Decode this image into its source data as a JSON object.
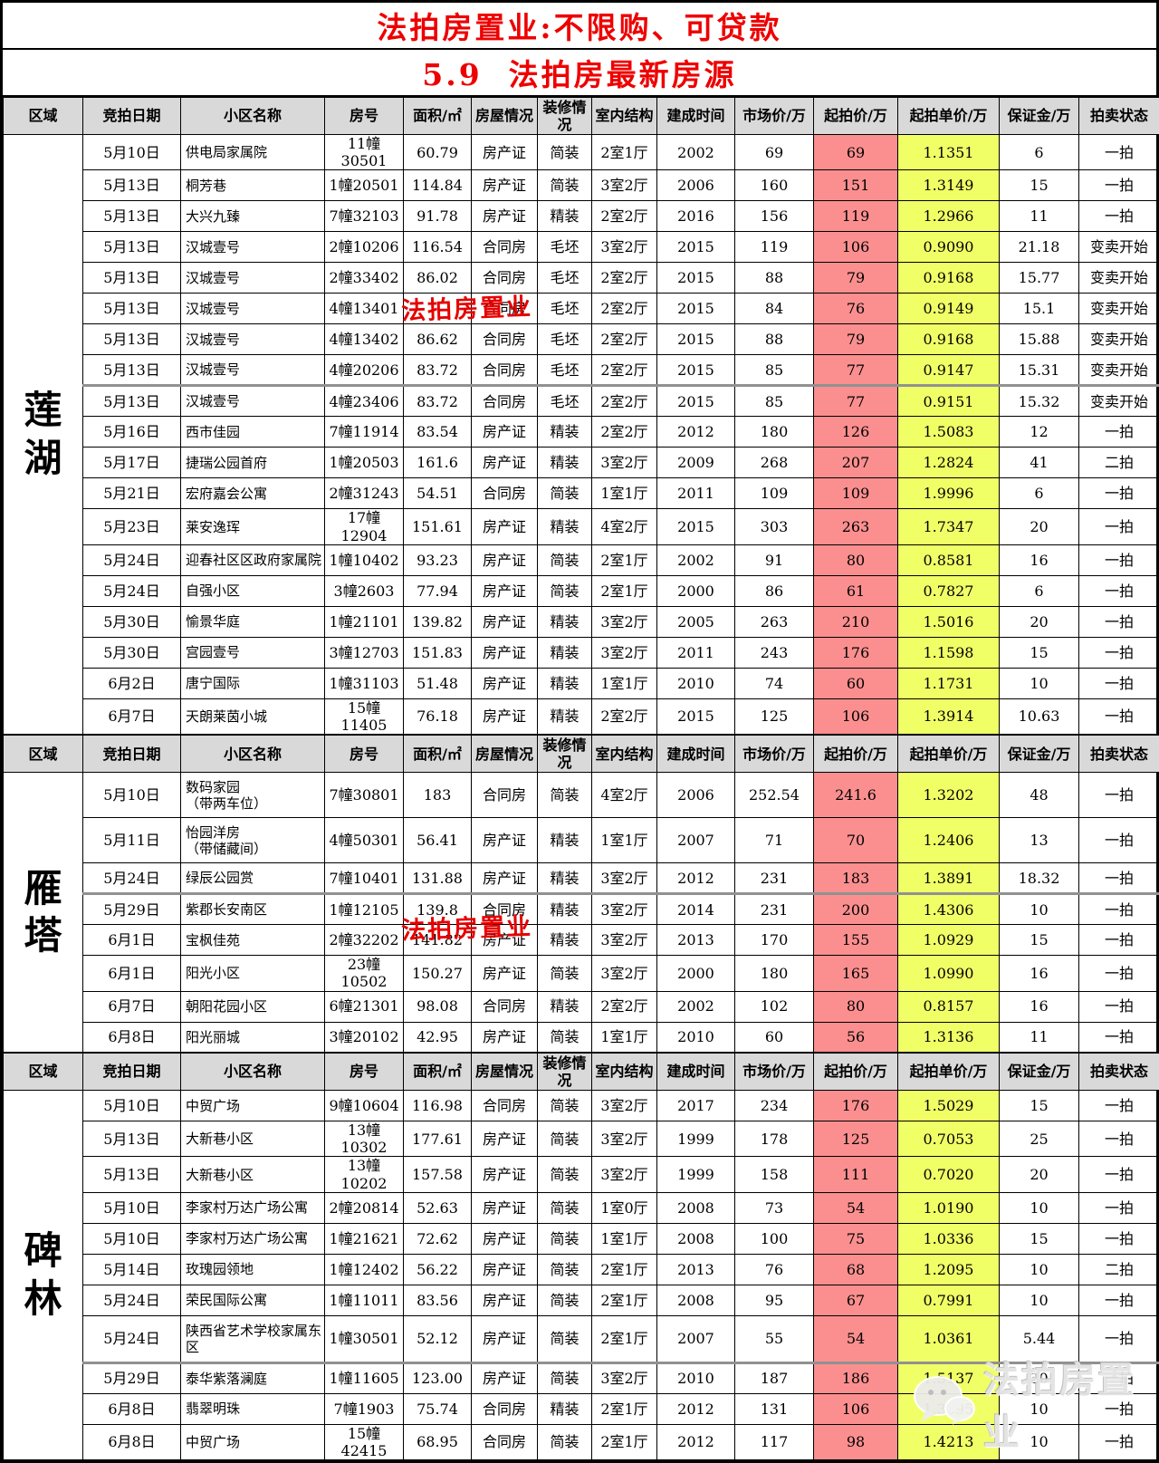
{
  "title1": "法拍房置业:不限购、可贷款",
  "title2": "5.9  法拍房最新房源",
  "columns": [
    "区域",
    "竞拍日期",
    "小区名称",
    "房号",
    "面积/㎡",
    "房屋情况",
    "装修情况",
    "室内结构",
    "建成时间",
    "市场价/万",
    "起拍价/万",
    "起拍单价/万",
    "保证金/万",
    "拍卖状态"
  ],
  "colors": {
    "header_bg": "#d9d9d9",
    "start_price_bg": "#fb8f8f",
    "unit_price_bg": "#f1ff67",
    "title_red": "#ee0000",
    "watermark_red": "#e60000"
  },
  "watermarks": {
    "red_text_1": "法拍房置业",
    "red_text_2": "法拍房置业",
    "wechat_text": "法拍房置业"
  },
  "sections": [
    {
      "region": "莲湖",
      "rows": [
        {
          "date": "5月10日",
          "name": "供电局家属院",
          "room": "11幢30501",
          "area": "60.79",
          "cert": "房产证",
          "deco": "简装",
          "layout": "2室1厅",
          "year": "2002",
          "market": "69",
          "start": "69",
          "unit": "1.1351",
          "deposit": "6",
          "status": "一拍"
        },
        {
          "date": "5月13日",
          "name": "桐芳巷",
          "room": "1幢20501",
          "area": "114.84",
          "cert": "房产证",
          "deco": "简装",
          "layout": "3室2厅",
          "year": "2006",
          "market": "160",
          "start": "151",
          "unit": "1.3149",
          "deposit": "15",
          "status": "一拍"
        },
        {
          "date": "5月13日",
          "name": "大兴九臻",
          "room": "7幢32103",
          "area": "91.78",
          "cert": "房产证",
          "deco": "精装",
          "layout": "2室2厅",
          "year": "2016",
          "market": "156",
          "start": "119",
          "unit": "1.2966",
          "deposit": "11",
          "status": "一拍"
        },
        {
          "date": "5月13日",
          "name": "汉城壹号",
          "room": "2幢10206",
          "area": "116.54",
          "cert": "合同房",
          "deco": "毛坯",
          "layout": "3室2厅",
          "year": "2015",
          "market": "119",
          "start": "106",
          "unit": "0.9090",
          "deposit": "21.18",
          "status": "变卖开始"
        },
        {
          "date": "5月13日",
          "name": "汉城壹号",
          "room": "2幢33402",
          "area": "86.02",
          "cert": "合同房",
          "deco": "毛坯",
          "layout": "2室2厅",
          "year": "2015",
          "market": "88",
          "start": "79",
          "unit": "0.9168",
          "deposit": "15.77",
          "status": "变卖开始"
        },
        {
          "date": "5月13日",
          "name": "汉城壹号",
          "room": "4幢13401",
          "area": "",
          "cert": "合同房",
          "deco": "毛坯",
          "layout": "2室2厅",
          "year": "2015",
          "market": "84",
          "start": "76",
          "unit": "0.9149",
          "deposit": "15.1",
          "status": "变卖开始"
        },
        {
          "date": "5月13日",
          "name": "汉城壹号",
          "room": "4幢13402",
          "area": "86.62",
          "cert": "合同房",
          "deco": "毛坯",
          "layout": "2室2厅",
          "year": "2015",
          "market": "88",
          "start": "79",
          "unit": "0.9168",
          "deposit": "15.88",
          "status": "变卖开始"
        },
        {
          "date": "5月13日",
          "name": "汉城壹号",
          "room": "4幢20206",
          "area": "83.72",
          "cert": "合同房",
          "deco": "毛坯",
          "layout": "2室2厅",
          "year": "2015",
          "market": "85",
          "start": "77",
          "unit": "0.9147",
          "deposit": "15.31",
          "status": "变卖开始"
        },
        {
          "date": "5月13日",
          "name": "汉城壹号",
          "room": "4幢23406",
          "area": "83.72",
          "cert": "合同房",
          "deco": "毛坯",
          "layout": "2室2厅",
          "year": "2015",
          "market": "85",
          "start": "77",
          "unit": "0.9151",
          "deposit": "15.32",
          "status": "变卖开始",
          "gray_top": true
        },
        {
          "date": "5月16日",
          "name": "西市佳园",
          "room": "7幢11914",
          "area": "83.54",
          "cert": "房产证",
          "deco": "精装",
          "layout": "2室2厅",
          "year": "2012",
          "market": "180",
          "start": "126",
          "unit": "1.5083",
          "deposit": "12",
          "status": "一拍"
        },
        {
          "date": "5月17日",
          "name": "捷瑞公园首府",
          "room": "1幢20503",
          "area": "161.6",
          "cert": "房产证",
          "deco": "精装",
          "layout": "3室2厅",
          "year": "2009",
          "market": "268",
          "start": "207",
          "unit": "1.2824",
          "deposit": "41",
          "status": "二拍"
        },
        {
          "date": "5月21日",
          "name": "宏府嘉会公寓",
          "room": "2幢31243",
          "area": "54.51",
          "cert": "合同房",
          "deco": "简装",
          "layout": "1室1厅",
          "year": "2011",
          "market": "109",
          "start": "109",
          "unit": "1.9996",
          "deposit": "6",
          "status": "一拍"
        },
        {
          "date": "5月23日",
          "name": "莱安逸珲",
          "room": "17幢12904",
          "area": "151.61",
          "cert": "房产证",
          "deco": "精装",
          "layout": "4室2厅",
          "year": "2015",
          "market": "303",
          "start": "263",
          "unit": "1.7347",
          "deposit": "20",
          "status": "一拍"
        },
        {
          "date": "5月24日",
          "name": "迎春社区区政府家属院",
          "room": "1幢10402",
          "area": "93.23",
          "cert": "房产证",
          "deco": "简装",
          "layout": "2室1厅",
          "year": "2002",
          "market": "91",
          "start": "80",
          "unit": "0.8581",
          "deposit": "16",
          "status": "一拍"
        },
        {
          "date": "5月24日",
          "name": "自强小区",
          "room": "3幢2603",
          "area": "77.94",
          "cert": "房产证",
          "deco": "简装",
          "layout": "2室1厅",
          "year": "2000",
          "market": "86",
          "start": "61",
          "unit": "0.7827",
          "deposit": "6",
          "status": "一拍"
        },
        {
          "date": "5月30日",
          "name": "愉景华庭",
          "room": "1幢21101",
          "area": "139.82",
          "cert": "房产证",
          "deco": "精装",
          "layout": "3室2厅",
          "year": "2005",
          "market": "263",
          "start": "210",
          "unit": "1.5016",
          "deposit": "20",
          "status": "一拍"
        },
        {
          "date": "5月30日",
          "name": "宫园壹号",
          "room": "3幢12703",
          "area": "151.83",
          "cert": "房产证",
          "deco": "精装",
          "layout": "3室2厅",
          "year": "2011",
          "market": "243",
          "start": "176",
          "unit": "1.1598",
          "deposit": "15",
          "status": "一拍"
        },
        {
          "date": "6月2日",
          "name": "唐宁国际",
          "room": "1幢31103",
          "area": "51.48",
          "cert": "房产证",
          "deco": "精装",
          "layout": "1室1厅",
          "year": "2010",
          "market": "74",
          "start": "60",
          "unit": "1.1731",
          "deposit": "10",
          "status": "一拍"
        },
        {
          "date": "6月7日",
          "name": "天朗莱茵小城",
          "room": "15幢11405",
          "area": "76.18",
          "cert": "房产证",
          "deco": "精装",
          "layout": "2室2厅",
          "year": "2015",
          "market": "125",
          "start": "106",
          "unit": "1.3914",
          "deposit": "10.63",
          "status": "一拍"
        }
      ]
    },
    {
      "region": "雁塔",
      "rows": [
        {
          "date": "5月10日",
          "name": "数码家园",
          "name2": "（带两车位）",
          "room": "7幢30801",
          "area": "183",
          "cert": "合同房",
          "deco": "简装",
          "layout": "4室2厅",
          "year": "2006",
          "market": "252.54",
          "start": "241.6",
          "unit": "1.3202",
          "deposit": "48",
          "status": "一拍",
          "tall": 50
        },
        {
          "date": "5月11日",
          "name": "怡园洋房",
          "name2": "（带储藏间）",
          "room": "4幢50301",
          "area": "56.41",
          "cert": "房产证",
          "deco": "精装",
          "layout": "1室1厅",
          "year": "2007",
          "market": "71",
          "start": "70",
          "unit": "1.2406",
          "deposit": "13",
          "status": "一拍",
          "tall": 50
        },
        {
          "date": "5月24日",
          "name": "绿辰公园赏",
          "room": "7幢10401",
          "area": "131.88",
          "cert": "房产证",
          "deco": "精装",
          "layout": "3室2厅",
          "year": "2012",
          "market": "231",
          "start": "183",
          "unit": "1.3891",
          "deposit": "18.32",
          "status": "一拍"
        },
        {
          "date": "5月29日",
          "name": "紫郡长安南区",
          "room": "1幢12105",
          "area": "139.8",
          "cert": "合同房",
          "deco": "精装",
          "layout": "3室2厅",
          "year": "2014",
          "market": "231",
          "start": "200",
          "unit": "1.4306",
          "deposit": "10",
          "status": "一拍",
          "gray_top": true
        },
        {
          "date": "6月1日",
          "name": "宝枫佳苑",
          "room": "2幢32202",
          "area": "141.82",
          "cert": "房产证",
          "deco": "精装",
          "layout": "3室2厅",
          "year": "2013",
          "market": "170",
          "start": "155",
          "unit": "1.0929",
          "deposit": "15",
          "status": "一拍"
        },
        {
          "date": "6月1日",
          "name": "阳光小区",
          "room": "23幢10502",
          "area": "150.27",
          "cert": "房产证",
          "deco": "简装",
          "layout": "3室2厅",
          "year": "2000",
          "market": "180",
          "start": "165",
          "unit": "1.0990",
          "deposit": "16",
          "status": "一拍"
        },
        {
          "date": "6月7日",
          "name": "朝阳花园小区",
          "room": "6幢21301",
          "area": "98.08",
          "cert": "合同房",
          "deco": "精装",
          "layout": "2室2厅",
          "year": "2002",
          "market": "102",
          "start": "80",
          "unit": "0.8157",
          "deposit": "16",
          "status": "一拍"
        },
        {
          "date": "6月8日",
          "name": "阳光丽城",
          "room": "3幢20102",
          "area": "42.95",
          "cert": "房产证",
          "deco": "简装",
          "layout": "1室1厅",
          "year": "2010",
          "market": "60",
          "start": "56",
          "unit": "1.3136",
          "deposit": "11",
          "status": "一拍"
        }
      ]
    },
    {
      "region": "碑林",
      "rows": [
        {
          "date": "5月10日",
          "name": "中贸广场",
          "room": "9幢10604",
          "area": "116.98",
          "cert": "合同房",
          "deco": "简装",
          "layout": "3室2厅",
          "year": "2017",
          "market": "234",
          "start": "176",
          "unit": "1.5029",
          "deposit": "15",
          "status": "一拍"
        },
        {
          "date": "5月13日",
          "name": "大新巷小区",
          "room": "13幢10302",
          "area": "177.61",
          "cert": "房产证",
          "deco": "简装",
          "layout": "3室2厅",
          "year": "1999",
          "market": "178",
          "start": "125",
          "unit": "0.7053",
          "deposit": "25",
          "status": "一拍"
        },
        {
          "date": "5月13日",
          "name": "大新巷小区",
          "room": "13幢10202",
          "area": "157.58",
          "cert": "房产证",
          "deco": "简装",
          "layout": "3室2厅",
          "year": "1999",
          "market": "158",
          "start": "111",
          "unit": "0.7020",
          "deposit": "20",
          "status": "一拍"
        },
        {
          "date": "5月10日",
          "name": "李家村万达广场公寓",
          "room": "2幢20814",
          "area": "52.63",
          "cert": "房产证",
          "deco": "简装",
          "layout": "1室0厅",
          "year": "2008",
          "market": "73",
          "start": "54",
          "unit": "1.0190",
          "deposit": "10",
          "status": "一拍"
        },
        {
          "date": "5月10日",
          "name": "李家村万达广场公寓",
          "room": "1幢21621",
          "area": "72.62",
          "cert": "房产证",
          "deco": "简装",
          "layout": "1室1厅",
          "year": "2008",
          "market": "100",
          "start": "75",
          "unit": "1.0336",
          "deposit": "15",
          "status": "一拍"
        },
        {
          "date": "5月14日",
          "name": "玫瑰园领地",
          "room": "1幢12402",
          "area": "56.22",
          "cert": "房产证",
          "deco": "简装",
          "layout": "2室1厅",
          "year": "2013",
          "market": "76",
          "start": "68",
          "unit": "1.2095",
          "deposit": "10",
          "status": "二拍"
        },
        {
          "date": "5月24日",
          "name": "荣民国际公寓",
          "room": "1幢11011",
          "area": "83.56",
          "cert": "房产证",
          "deco": "简装",
          "layout": "2室1厅",
          "year": "2008",
          "market": "95",
          "start": "67",
          "unit": "0.7991",
          "deposit": "10",
          "status": "一拍"
        },
        {
          "date": "5月24日",
          "name": "陕西省艺术学校家属东区",
          "room": "1幢30501",
          "area": "52.12",
          "cert": "房产证",
          "deco": "简装",
          "layout": "2室1厅",
          "year": "2007",
          "market": "55",
          "start": "54",
          "unit": "1.0361",
          "deposit": "5.44",
          "status": "一拍",
          "tall": 52
        },
        {
          "date": "5月29日",
          "name": "泰华紫落澜庭",
          "room": "1幢11605",
          "area": "123.00",
          "cert": "房产证",
          "deco": "简装",
          "layout": "3室2厅",
          "year": "2010",
          "market": "187",
          "start": "186",
          "unit": "1.5137",
          "deposit": "20",
          "status": "一拍",
          "gray_top": true
        },
        {
          "date": "6月8日",
          "name": "翡翠明珠",
          "room": "7幢1903",
          "area": "75.74",
          "cert": "合同房",
          "deco": "精装",
          "layout": "2室1厅",
          "year": "2012",
          "market": "131",
          "start": "106",
          "unit": "1.3995",
          "deposit": "10",
          "status": "一拍"
        },
        {
          "date": "6月8日",
          "name": "中贸广场",
          "room": "15幢42415",
          "area": "68.95",
          "cert": "合同房",
          "deco": "简装",
          "layout": "2室1厅",
          "year": "2012",
          "market": "117",
          "start": "98",
          "unit": "1.4213",
          "deposit": "10",
          "status": "一拍"
        }
      ]
    }
  ]
}
